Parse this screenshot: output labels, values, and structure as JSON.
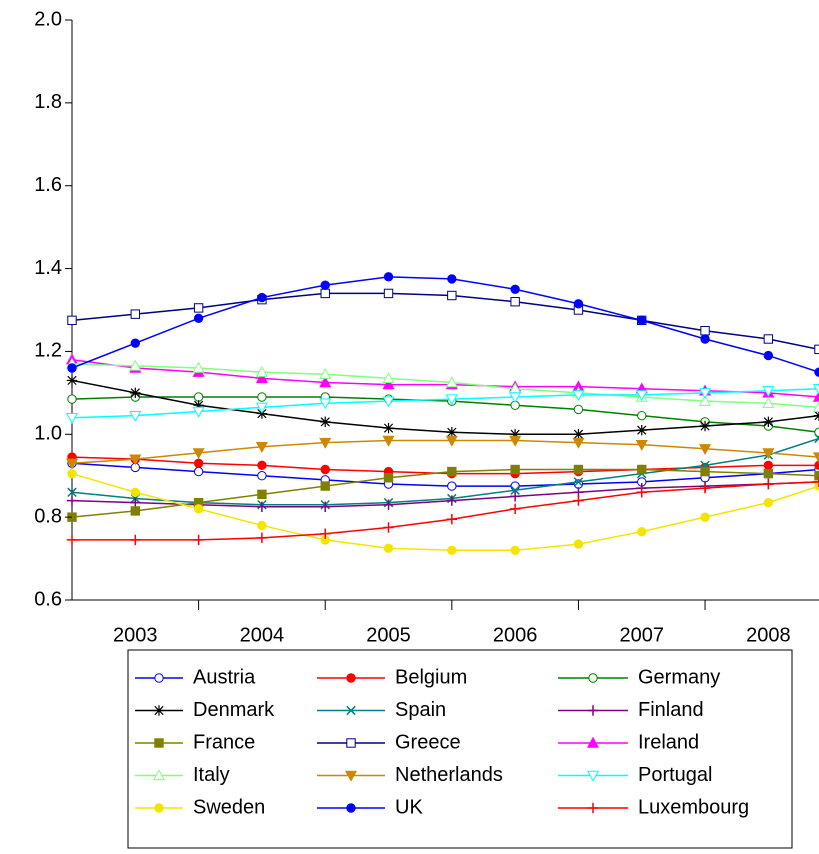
{
  "chart_data": {
    "type": "line",
    "x": [
      2003,
      2003.5,
      2004,
      2004.5,
      2005,
      2005.5,
      2006,
      2006.5,
      2007,
      2007.5,
      2008,
      2008.5,
      2008.9
    ],
    "xlim": [
      2003,
      2008.9
    ],
    "xticks": [
      {
        "value": 2003.5,
        "label": "2003"
      },
      {
        "value": 2004.5,
        "label": "2004"
      },
      {
        "value": 2005.5,
        "label": "2005"
      },
      {
        "value": 2006.5,
        "label": "2006"
      },
      {
        "value": 2007.5,
        "label": "2007"
      },
      {
        "value": 2008.5,
        "label": "2008"
      }
    ],
    "ylim": [
      0.6,
      2.0
    ],
    "yticks": [
      0.6,
      0.8,
      {
        "value": 1.0,
        "label": "1.0"
      },
      1.2,
      1.4,
      1.6,
      1.8,
      {
        "value": 2.0,
        "label": "2.0"
      }
    ],
    "series": [
      {
        "name": "Austria",
        "color": "#0000ff",
        "marker": "circle-open",
        "values": [
          0.93,
          0.92,
          0.91,
          0.9,
          0.89,
          0.88,
          0.875,
          0.875,
          0.88,
          0.885,
          0.895,
          0.905,
          0.915
        ]
      },
      {
        "name": "Belgium",
        "color": "#ff0000",
        "marker": "circle",
        "values": [
          0.945,
          0.94,
          0.93,
          0.925,
          0.915,
          0.91,
          0.905,
          0.905,
          0.91,
          0.915,
          0.92,
          0.925,
          0.925
        ]
      },
      {
        "name": "Germany",
        "color": "#008000",
        "marker": "circle-open",
        "values": [
          1.085,
          1.09,
          1.09,
          1.09,
          1.09,
          1.085,
          1.08,
          1.07,
          1.06,
          1.045,
          1.03,
          1.02,
          1.005
        ]
      },
      {
        "name": "Denmark",
        "color": "#000000",
        "marker": "star",
        "values": [
          1.13,
          1.1,
          1.07,
          1.05,
          1.03,
          1.015,
          1.005,
          1.0,
          1.0,
          1.01,
          1.02,
          1.03,
          1.045
        ]
      },
      {
        "name": "Spain",
        "color": "#008080",
        "marker": "x",
        "values": [
          0.86,
          0.845,
          0.835,
          0.83,
          0.83,
          0.835,
          0.845,
          0.865,
          0.885,
          0.905,
          0.925,
          0.95,
          0.99
        ]
      },
      {
        "name": "Finland",
        "color": "#800080",
        "marker": "plus",
        "values": [
          0.84,
          0.835,
          0.83,
          0.825,
          0.825,
          0.83,
          0.84,
          0.85,
          0.86,
          0.87,
          0.875,
          0.88,
          0.885
        ]
      },
      {
        "name": "France",
        "color": "#808000",
        "marker": "square",
        "values": [
          0.8,
          0.815,
          0.835,
          0.855,
          0.875,
          0.895,
          0.91,
          0.915,
          0.915,
          0.915,
          0.91,
          0.905,
          0.9
        ]
      },
      {
        "name": "Greece",
        "color": "#000080",
        "marker": "square-open",
        "values": [
          1.275,
          1.29,
          1.305,
          1.325,
          1.34,
          1.34,
          1.335,
          1.32,
          1.3,
          1.275,
          1.25,
          1.23,
          1.205
        ]
      },
      {
        "name": "Ireland",
        "color": "#ff00ff",
        "marker": "triangle",
        "values": [
          1.18,
          1.16,
          1.15,
          1.135,
          1.125,
          1.12,
          1.12,
          1.115,
          1.115,
          1.11,
          1.105,
          1.1,
          1.09
        ]
      },
      {
        "name": "Italy",
        "color": "#80ff80",
        "marker": "triangle-open",
        "values": [
          1.17,
          1.165,
          1.16,
          1.15,
          1.145,
          1.135,
          1.125,
          1.11,
          1.1,
          1.09,
          1.08,
          1.075,
          1.065
        ]
      },
      {
        "name": "Netherlands",
        "color": "#cc8800",
        "marker": "triangle-down",
        "values": [
          0.93,
          0.94,
          0.955,
          0.97,
          0.98,
          0.985,
          0.985,
          0.985,
          0.98,
          0.975,
          0.965,
          0.955,
          0.945
        ]
      },
      {
        "name": "Portugal",
        "color": "#00ffff",
        "marker": "triangle-down-open",
        "values": [
          1.04,
          1.045,
          1.055,
          1.065,
          1.075,
          1.08,
          1.085,
          1.09,
          1.095,
          1.095,
          1.1,
          1.105,
          1.11
        ]
      },
      {
        "name": "Sweden",
        "color": "#f2e600",
        "marker": "circle",
        "values": [
          0.905,
          0.86,
          0.82,
          0.78,
          0.745,
          0.725,
          0.72,
          0.72,
          0.735,
          0.765,
          0.8,
          0.835,
          0.875
        ]
      },
      {
        "name": "UK",
        "color": "#0000ff",
        "marker": "circle",
        "values": [
          1.16,
          1.22,
          1.28,
          1.33,
          1.36,
          1.38,
          1.375,
          1.35,
          1.315,
          1.275,
          1.23,
          1.19,
          1.15
        ]
      },
      {
        "name": "Luxembourg",
        "color": "#ff0000",
        "marker": "plus",
        "values": [
          0.745,
          0.745,
          0.745,
          0.75,
          0.76,
          0.775,
          0.795,
          0.82,
          0.84,
          0.86,
          0.87,
          0.88,
          0.885
        ]
      }
    ]
  }
}
